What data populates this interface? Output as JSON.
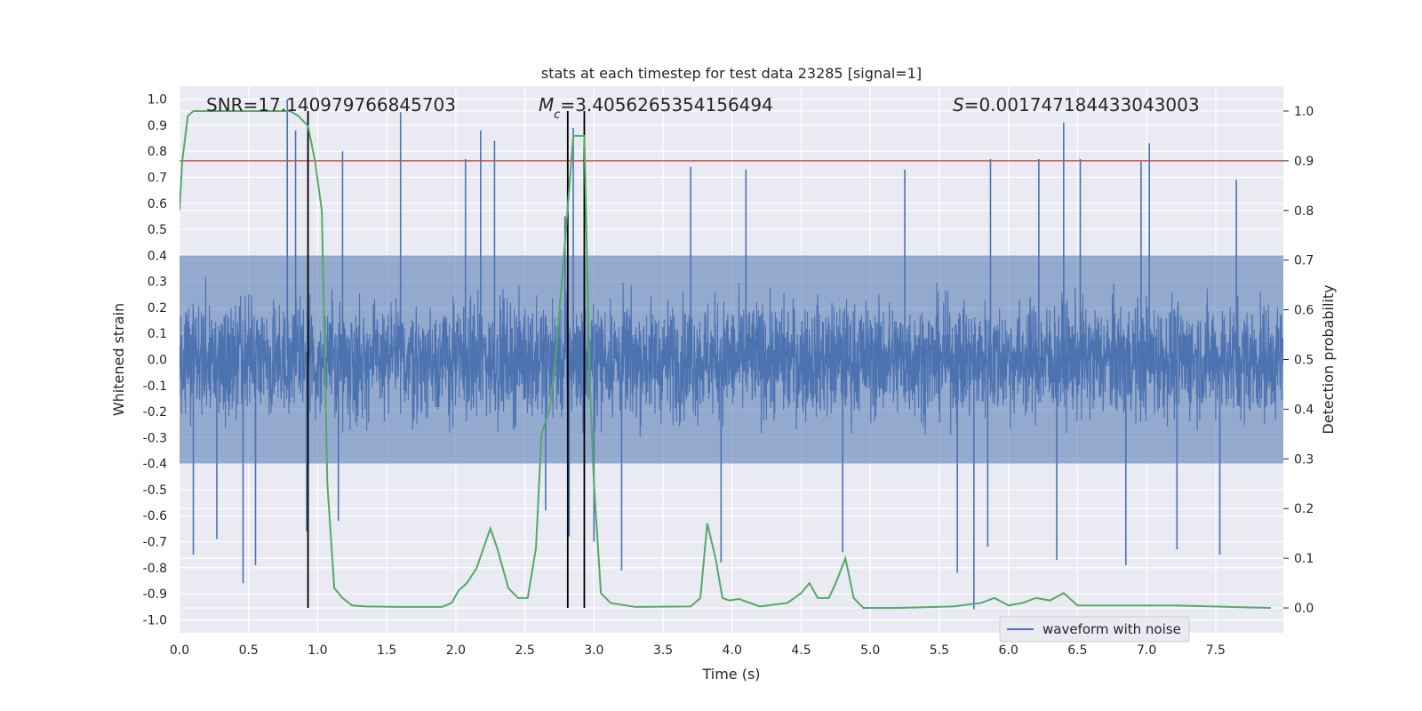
{
  "chart_data": {
    "type": "line",
    "title": "stats at each timestep for test data 23285 [signal=1]",
    "xlabel": "Time (s)",
    "ylabel_left": "Whitened strain",
    "ylabel_right": "Detection probability",
    "xlim": [
      0.0,
      7.99
    ],
    "ylim_left": [
      -1.05,
      1.05
    ],
    "ylim_right": [
      -0.05,
      1.05
    ],
    "x_ticks": [
      "0.0",
      "0.5",
      "1.0",
      "1.5",
      "2.0",
      "2.5",
      "3.0",
      "3.5",
      "4.0",
      "4.5",
      "5.0",
      "5.5",
      "6.0",
      "6.5",
      "7.0",
      "7.5"
    ],
    "y_ticks_left": [
      "1.0",
      "0.9",
      "0.8",
      "0.7",
      "0.6",
      "0.5",
      "0.4",
      "0.3",
      "0.2",
      "0.1",
      "0.0",
      "-0.1",
      "-0.2",
      "-0.3",
      "-0.4",
      "-0.5",
      "-0.6",
      "-0.7",
      "-0.8",
      "-0.9",
      "-1.0"
    ],
    "y_ticks_right": [
      "1.0",
      "0.9",
      "0.8",
      "0.7",
      "0.6",
      "0.5",
      "0.4",
      "0.3",
      "0.2",
      "0.1",
      "0.0"
    ],
    "grid": true,
    "legend": {
      "position": "lower-right",
      "entries": [
        "waveform with noise"
      ]
    },
    "annotations": {
      "snr": "SNR=17.140979766845703",
      "mc_symbol": "M",
      "mc_sub": "c",
      "mc_value": "=3.4056265354156494",
      "s_symbol": "S",
      "s_value": "=0.001747184433043003"
    },
    "threshold": {
      "value": 0.9,
      "axis": "right"
    },
    "vertical_lines": [
      0.93,
      2.81,
      2.93
    ],
    "waveform": {
      "name": "waveform with noise",
      "sample_rate_approx": 512,
      "core_band": [
        -0.4,
        0.4
      ],
      "spikes_up": [
        [
          0.78,
          1.0
        ],
        [
          0.84,
          0.88
        ],
        [
          1.18,
          0.8
        ],
        [
          1.6,
          0.95
        ],
        [
          2.07,
          0.77
        ],
        [
          2.18,
          0.88
        ],
        [
          2.28,
          0.84
        ],
        [
          2.79,
          0.55
        ],
        [
          2.85,
          0.89
        ],
        [
          3.7,
          0.74
        ],
        [
          4.1,
          0.73
        ],
        [
          5.25,
          0.73
        ],
        [
          5.87,
          0.77
        ],
        [
          6.22,
          0.77
        ],
        [
          6.4,
          0.91
        ],
        [
          6.52,
          0.77
        ],
        [
          6.96,
          0.76
        ],
        [
          7.02,
          0.83
        ],
        [
          7.65,
          0.69
        ]
      ],
      "spikes_down": [
        [
          0.1,
          -0.75
        ],
        [
          0.27,
          -0.69
        ],
        [
          0.46,
          -0.86
        ],
        [
          0.55,
          -0.79
        ],
        [
          0.92,
          -0.66
        ],
        [
          1.15,
          -0.62
        ],
        [
          2.65,
          -0.58
        ],
        [
          2.82,
          -0.68
        ],
        [
          3.0,
          -0.7
        ],
        [
          3.2,
          -0.81
        ],
        [
          3.92,
          -0.78
        ],
        [
          4.8,
          -0.74
        ],
        [
          5.63,
          -0.82
        ],
        [
          5.75,
          -0.96
        ],
        [
          5.85,
          -0.72
        ],
        [
          6.35,
          -0.77
        ],
        [
          6.85,
          -0.79
        ],
        [
          7.22,
          -0.73
        ],
        [
          7.53,
          -0.75
        ]
      ]
    },
    "detection_probability": {
      "x": [
        0.0,
        0.02,
        0.06,
        0.1,
        0.2,
        0.4,
        0.6,
        0.8,
        0.86,
        0.93,
        0.98,
        1.03,
        1.07,
        1.12,
        1.18,
        1.25,
        1.35,
        1.6,
        1.9,
        1.97,
        2.02,
        2.08,
        2.15,
        2.2,
        2.25,
        2.3,
        2.38,
        2.45,
        2.52,
        2.58,
        2.62,
        2.68,
        2.72,
        2.78,
        2.85,
        2.88,
        2.93,
        2.97,
        3.0,
        3.05,
        3.12,
        3.3,
        3.7,
        3.77,
        3.82,
        3.88,
        3.93,
        3.98,
        4.05,
        4.2,
        4.4,
        4.5,
        4.56,
        4.62,
        4.7,
        4.75,
        4.82,
        4.88,
        4.95,
        5.2,
        5.6,
        5.8,
        5.9,
        6.0,
        6.1,
        6.2,
        6.3,
        6.4,
        6.5,
        6.8,
        7.2,
        7.9
      ],
      "y": [
        0.8,
        0.9,
        0.99,
        1.0,
        1.0,
        1.0,
        1.0,
        1.0,
        0.99,
        0.97,
        0.9,
        0.8,
        0.25,
        0.04,
        0.02,
        0.005,
        0.003,
        0.002,
        0.002,
        0.01,
        0.035,
        0.05,
        0.08,
        0.12,
        0.16,
        0.12,
        0.04,
        0.02,
        0.02,
        0.12,
        0.35,
        0.4,
        0.5,
        0.7,
        0.95,
        0.95,
        0.95,
        0.45,
        0.25,
        0.03,
        0.01,
        0.002,
        0.003,
        0.02,
        0.17,
        0.1,
        0.02,
        0.015,
        0.018,
        0.003,
        0.01,
        0.03,
        0.05,
        0.02,
        0.02,
        0.05,
        0.1,
        0.02,
        0.0,
        0.0,
        0.003,
        0.01,
        0.02,
        0.005,
        0.01,
        0.02,
        0.015,
        0.03,
        0.005,
        0.005,
        0.005,
        0.0
      ]
    },
    "colors": {
      "waveform": "#4c72b0",
      "probability": "#55a868",
      "threshold": "#c44e52",
      "vlines": "#000000",
      "axes_bg": "#eaeaf2",
      "grid": "#ffffff"
    }
  }
}
